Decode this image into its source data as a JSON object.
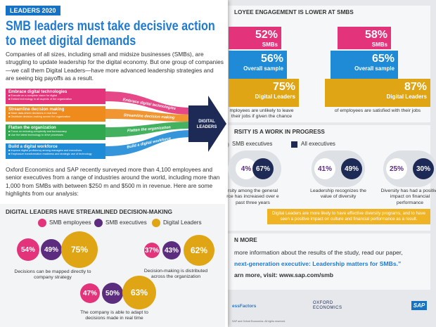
{
  "left_page": {
    "tag": "LEADERS 2020",
    "title": "SMB leaders must take decisive action to meet digital demands",
    "intro": "Companies of all sizes, including small and midsize businesses (SMBs), are struggling to update leadership for the digital economy. But one group of companies—we call them Digital Leaders—have more advanced leadership strategies and are seeing big payoffs as a result.",
    "diagram": {
      "steps": [
        {
          "label": "Embrace digital technologies",
          "bullets": [
            "Execute on a complete vision for digital",
            "Embed technology in all aspects of the organization"
          ]
        },
        {
          "label": "Streamline decision making",
          "bullets": [
            "Make data-driven decisions in real time",
            "Distribute decision-making across the organization"
          ]
        },
        {
          "label": "Flatten the organization",
          "bullets": [
            "Focus on reducing complexity and bureaucracy",
            "Use the latest technology to drive processes"
          ]
        },
        {
          "label": "Build a digital workforce",
          "bullets": [
            "Improve digital proficiency among managers and executives",
            "Emphasize transformation readiness and strategic use of technology"
          ]
        }
      ],
      "target": "DIGITAL LEADERS"
    },
    "survey": "Oxford Economics and SAP recently surveyed more than 4,100 employees and senior executives from a range of industries around the world, including more than 1,000 from SMBs with between $250 m and $500 m in revenue. Here are some highlights from our analysis:",
    "decision_panel": {
      "title": "DIGITAL LEADERS HAVE STREAMLINED DECISION-MAKING",
      "legend": [
        "SMB employees",
        "SMB executives",
        "Digital Leaders"
      ],
      "groups": [
        {
          "values": [
            "54%",
            "49%",
            "75%"
          ],
          "caption": "Decisions can be mapped directly to company strategy"
        },
        {
          "values": [
            "37%",
            "43%",
            "62%"
          ],
          "caption": "Decision-making is distributed across the organization"
        },
        {
          "values": [
            "47%",
            "50%",
            "63%"
          ],
          "caption": "The company is able to adapt to decisions made in real time"
        }
      ]
    }
  },
  "right_page": {
    "engagement": {
      "title": "LOYEE ENGAGEMENT IS LOWER AT SMBS",
      "columns": [
        {
          "bars": [
            {
              "value": "52%",
              "label": "SMBs"
            },
            {
              "value": "56%",
              "label": "Overall sample"
            },
            {
              "value": "75%",
              "label": "Digital Leaders"
            }
          ],
          "caption": "mployees are unlikely to leave their jobs if given the chance"
        },
        {
          "bars": [
            {
              "value": "58%",
              "label": "SMBs"
            },
            {
              "value": "65%",
              "label": "Overall sample"
            },
            {
              "value": "87%",
              "label": "Digital Leaders"
            }
          ],
          "caption": "of employees are satisfied with their jobs"
        }
      ]
    },
    "diversity": {
      "title": "RSITY IS A WORK IN PROGRESS",
      "legend": [
        "SMB executives",
        "All executives"
      ],
      "groups": [
        {
          "values": [
            "4%",
            "67%"
          ],
          "caption": "rsity among the general rce has increased over e past three years"
        },
        {
          "values": [
            "41%",
            "49%"
          ],
          "caption": "Leadership recognizes the value of diversity"
        },
        {
          "values": [
            "25%",
            "30%"
          ],
          "caption": "Diversity has had a positive impact on financial performance"
        }
      ],
      "banner": "Digital Leaders are more likely to have effective diversity programs, and to have seen a positive impact on culture and financial performance as a result."
    },
    "learn_more": {
      "title": "N MORE",
      "line1": "more information about the results of the study, read our paper,",
      "paper": "next-generation executive: Leadership matters for SMBs.”",
      "line3": "arn more, visit: www.sap.com/smb"
    },
    "footer": {
      "logo1": "essFactors",
      "logo2": "OXFORD ECONOMICS",
      "logo3": "SAP",
      "legal": "SAP and Oxford Economics. All rights reserved."
    }
  }
}
